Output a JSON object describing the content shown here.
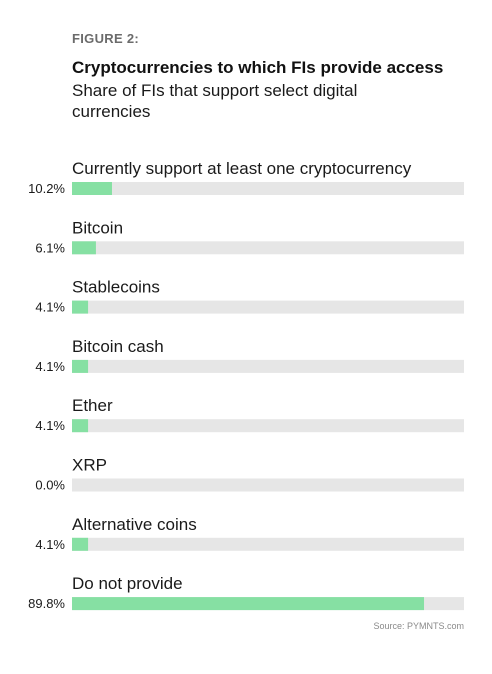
{
  "figure_label": "FIGURE 2:",
  "title": "Cryptocurrencies to which FIs provide access",
  "subtitle": "Share of FIs that support select digital currencies",
  "source": "Source: PYMNTS.com",
  "colors": {
    "bar": "#86e0a3",
    "track": "#e6e6e6"
  },
  "chart_data": {
    "type": "bar",
    "orientation": "horizontal",
    "title": "Cryptocurrencies to which FIs provide access",
    "subtitle": "Share of FIs that support select digital currencies",
    "xlim": [
      0,
      100
    ],
    "unit": "%",
    "categories": [
      "Currently support at least one cryptocurrency",
      "Bitcoin",
      "Stablecoins",
      "Bitcoin cash",
      "Ether",
      "XRP",
      "Alternative coins",
      "Do not provide"
    ],
    "values": [
      10.2,
      6.1,
      4.1,
      4.1,
      4.1,
      0.0,
      4.1,
      89.8
    ],
    "value_labels": [
      "10.2%",
      "6.1%",
      "4.1%",
      "4.1%",
      "4.1%",
      "0.0%",
      "4.1%",
      "89.8%"
    ]
  }
}
